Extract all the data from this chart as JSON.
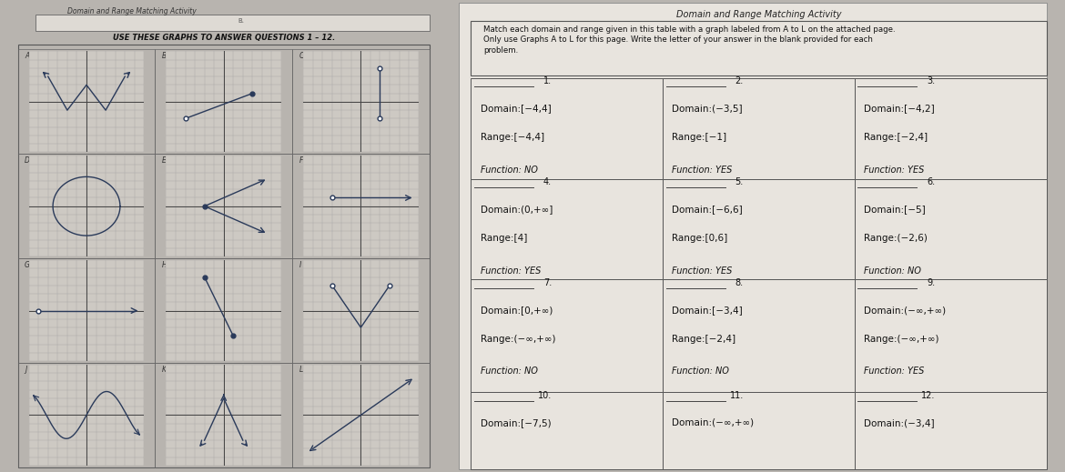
{
  "title_left": "Domain and Range Matching Activity",
  "title_right": "Domain and Range Matching Activity",
  "instruction_right": "Match each domain and range given in this table with a graph labeled from A to L on the attached page.\nOnly use Graphs A to L for this page. Write the letter of your answer in the blank provided for each\nproblem.",
  "instruction_left": "USE THESE GRAPHS TO ANSWER QUESTIONS 1 – 12.",
  "bg_color": "#b8b4af",
  "left_paper_color": "#d8d4ce",
  "right_paper_color": "#e8e4de",
  "cell_color": "#e0dcd6",
  "graph_bg": "#cdc9c3",
  "grid_color": "#a0a0a0",
  "axis_color": "#444444",
  "line_color": "#2a3a5a",
  "problems": [
    {
      "num": "1.",
      "domain": "Domain:[−4,4]",
      "range": "Range:[−4,4]",
      "function": "Function: NO"
    },
    {
      "num": "2.",
      "domain": "Domain:(−3,5]",
      "range": "Range:[−1]",
      "function": "Function: YES"
    },
    {
      "num": "3.",
      "domain": "Domain:[−4,2]",
      "range": "Range:[−2,4]",
      "function": "Function: YES"
    },
    {
      "num": "4.",
      "domain": "Domain:(0,+∞]",
      "range": "Range:[4]",
      "function": "Function: YES"
    },
    {
      "num": "5.",
      "domain": "Domain:[−6,6]",
      "range": "Range:[0,6]",
      "function": "Function: YES"
    },
    {
      "num": "6.",
      "domain": "Domain:[−5]",
      "range": "Range:(−2,6)",
      "function": "Function: NO"
    },
    {
      "num": "7.",
      "domain": "Domain:[0,+∞)",
      "range": "Range:(−∞,+∞)",
      "function": "Function: NO"
    },
    {
      "num": "8.",
      "domain": "Domain:[−3,4]",
      "range": "Range:[−2,4]",
      "function": "Function: NO"
    },
    {
      "num": "9.",
      "domain": "Domain:(−∞,+∞)",
      "range": "Range:(−∞,+∞)",
      "function": "Function: YES"
    },
    {
      "num": "10.",
      "domain": "Domain:[−7,5)",
      "range": "",
      "function": ""
    },
    {
      "num": "11.",
      "domain": "Domain:(−∞,+∞)",
      "range": "",
      "function": ""
    },
    {
      "num": "12.",
      "domain": "Domain:(−3,4]",
      "range": "",
      "function": ""
    }
  ]
}
